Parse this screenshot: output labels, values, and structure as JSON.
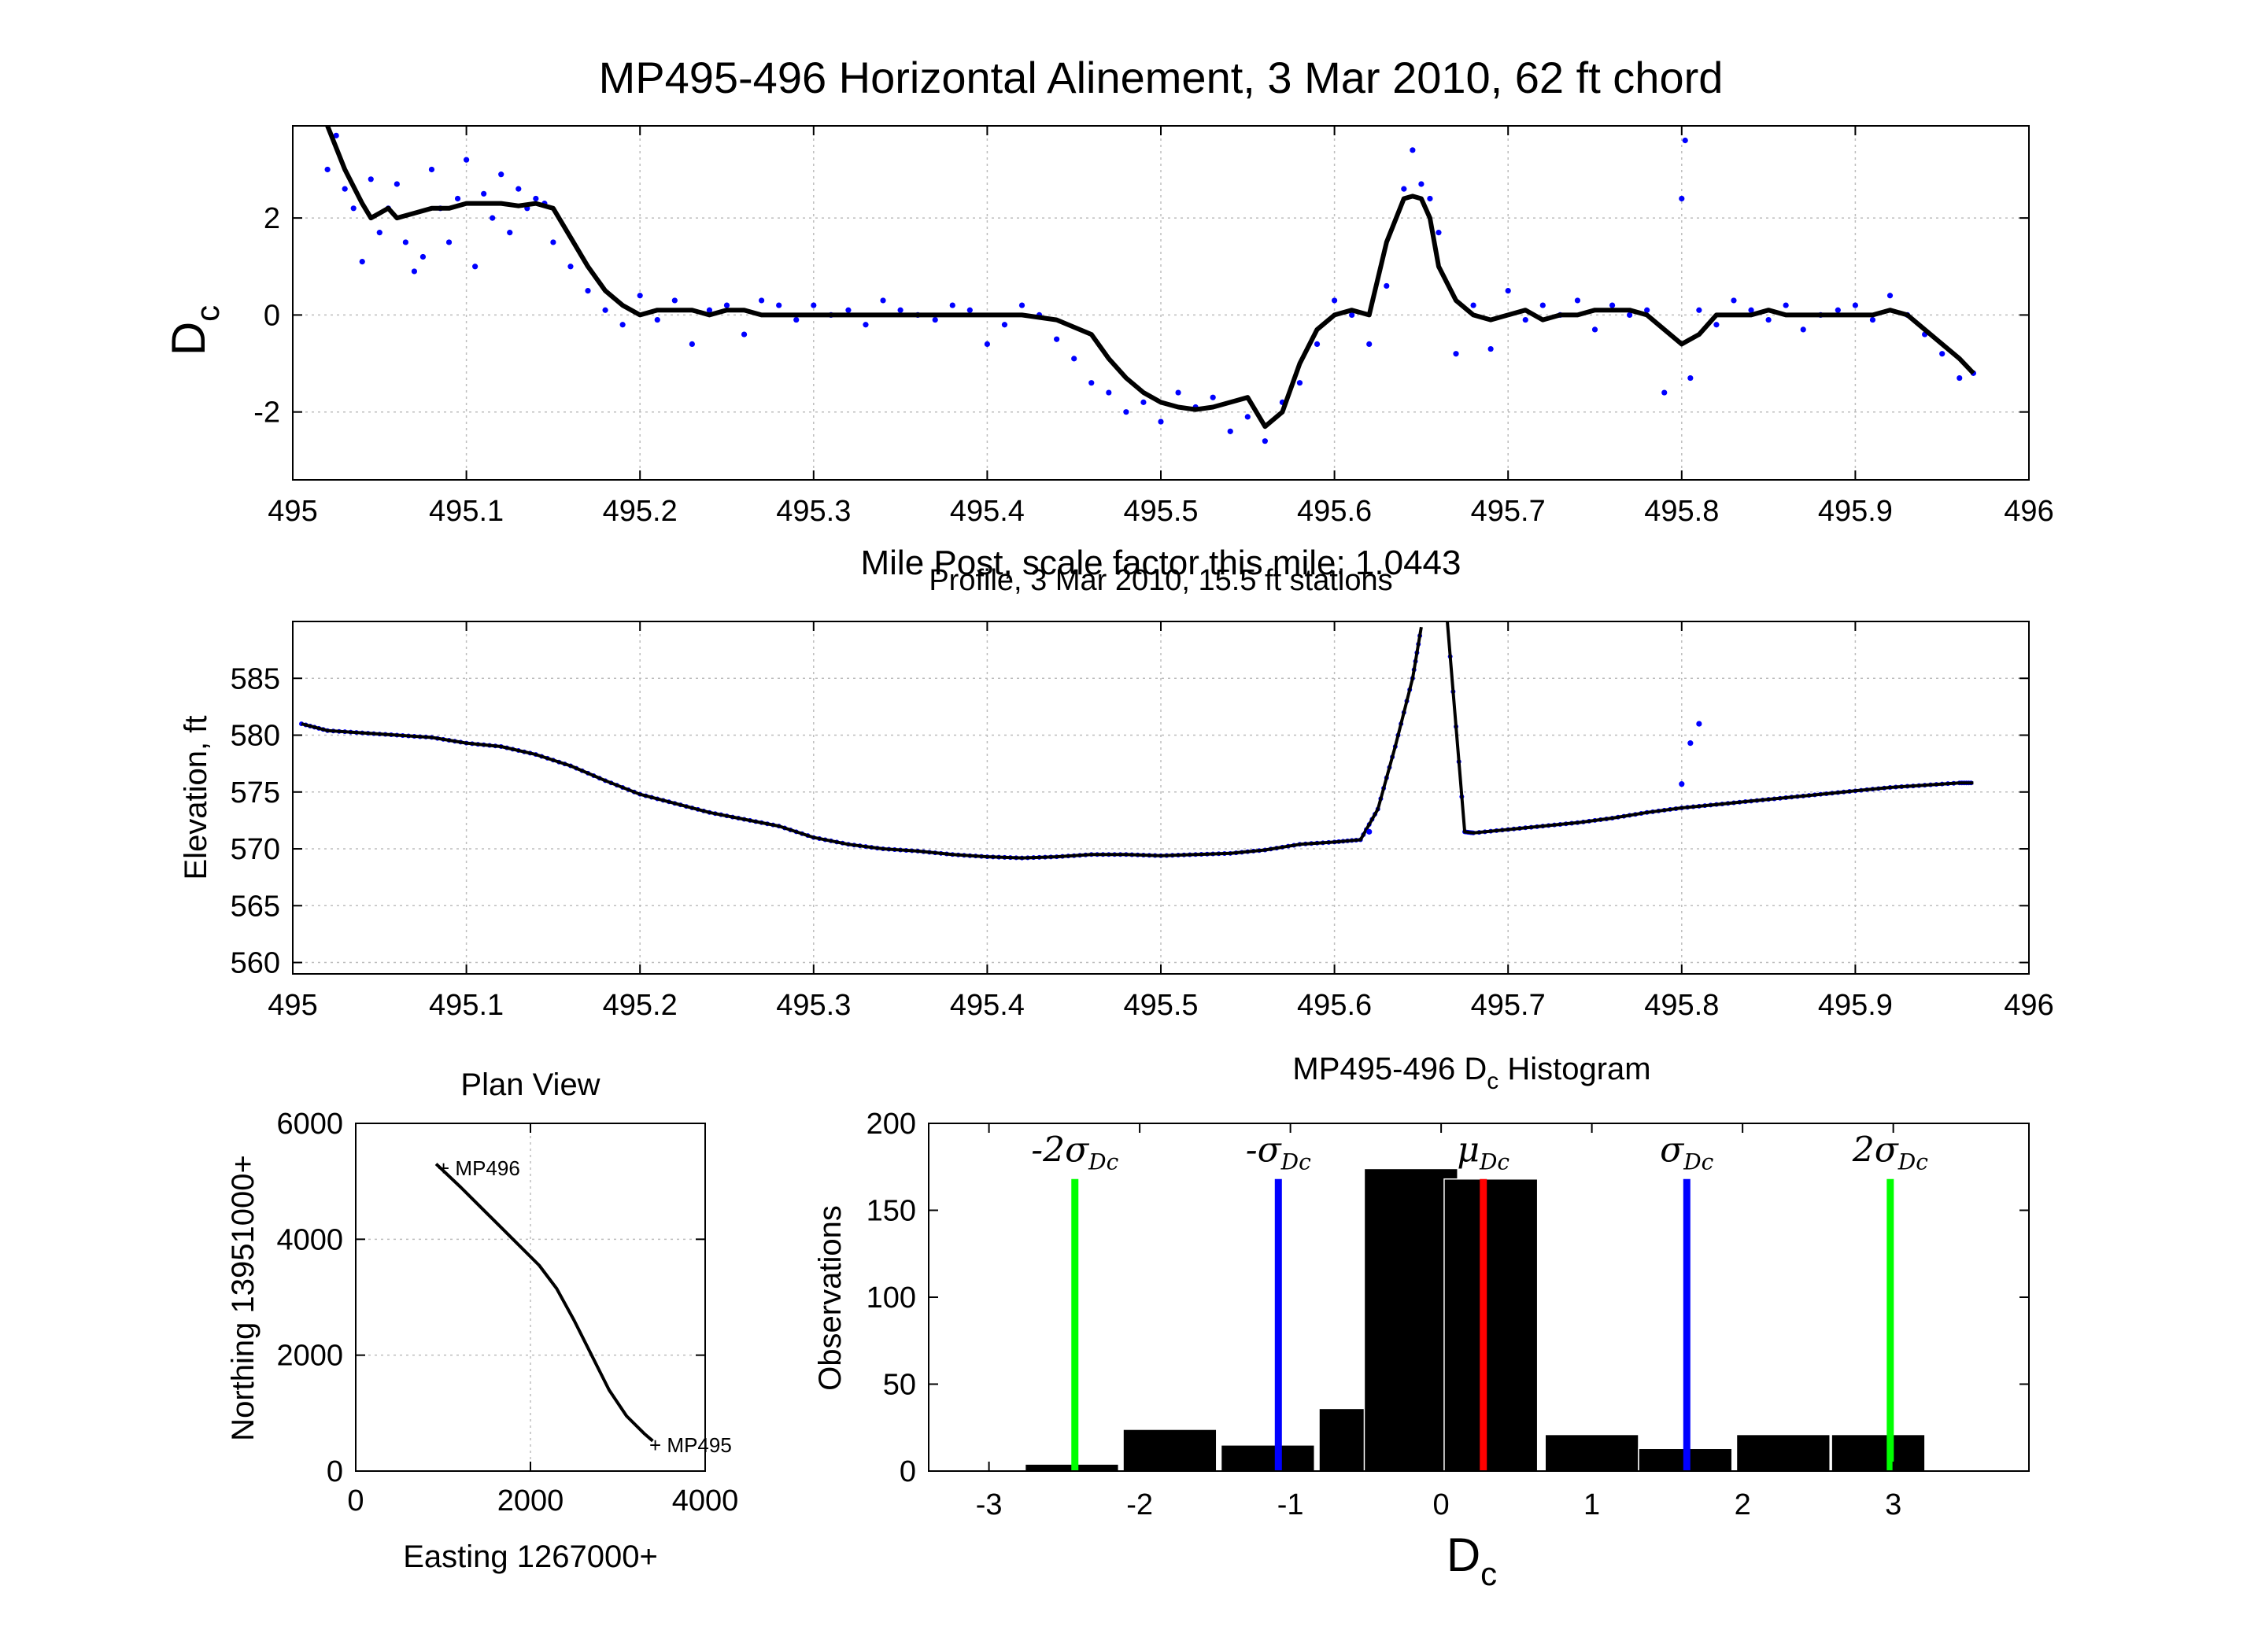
{
  "chart_data": [
    {
      "type": "scatter",
      "title": "MP495-496 Horizontal Alinement, 3 Mar 2010, 62 ft chord",
      "xlabel": "Mile Post, scale factor this mile: 1.0443",
      "ylabel": "D",
      "ylabel_sub": "c",
      "xlim": [
        495,
        496
      ],
      "ylim": [
        -3.4,
        3.9
      ],
      "xticks": [
        "495",
        "495.1",
        "495.2",
        "495.3",
        "495.4",
        "495.5",
        "495.6",
        "495.7",
        "495.8",
        "495.9",
        "496"
      ],
      "yticks": [
        "-2",
        "0",
        "2"
      ],
      "grid": true,
      "series": [
        {
          "kind": "points",
          "color": "#0000ff",
          "x": [
            495.02,
            495.025,
            495.03,
            495.035,
            495.04,
            495.045,
            495.05,
            495.055,
            495.06,
            495.065,
            495.07,
            495.075,
            495.08,
            495.085,
            495.09,
            495.095,
            495.1,
            495.105,
            495.11,
            495.115,
            495.12,
            495.125,
            495.13,
            495.135,
            495.14,
            495.145,
            495.15,
            495.16,
            495.17,
            495.18,
            495.19,
            495.2,
            495.21,
            495.22,
            495.23,
            495.24,
            495.25,
            495.26,
            495.27,
            495.28,
            495.29,
            495.3,
            495.31,
            495.32,
            495.33,
            495.34,
            495.35,
            495.36,
            495.37,
            495.38,
            495.39,
            495.4,
            495.41,
            495.42,
            495.43,
            495.44,
            495.45,
            495.46,
            495.47,
            495.48,
            495.49,
            495.5,
            495.51,
            495.52,
            495.53,
            495.54,
            495.55,
            495.56,
            495.57,
            495.58,
            495.59,
            495.6,
            495.61,
            495.62,
            495.63,
            495.64,
            495.645,
            495.65,
            495.655,
            495.66,
            495.67,
            495.68,
            495.69,
            495.7,
            495.71,
            495.72,
            495.73,
            495.74,
            495.75,
            495.76,
            495.77,
            495.78,
            495.79,
            495.8,
            495.802,
            495.805,
            495.81,
            495.82,
            495.83,
            495.84,
            495.85,
            495.86,
            495.87,
            495.88,
            495.89,
            495.9,
            495.91,
            495.92,
            495.93,
            495.94,
            495.95,
            495.96,
            495.968
          ],
          "y": [
            3.0,
            3.7,
            2.6,
            2.2,
            1.1,
            2.8,
            1.7,
            2.2,
            2.7,
            1.5,
            0.9,
            1.2,
            3.0,
            2.2,
            1.5,
            2.4,
            3.2,
            1.0,
            2.5,
            2.0,
            2.9,
            1.7,
            2.6,
            2.2,
            2.4,
            2.3,
            1.5,
            1.0,
            0.5,
            0.1,
            -0.2,
            0.4,
            -0.1,
            0.3,
            -0.6,
            0.1,
            0.2,
            -0.4,
            0.3,
            0.2,
            -0.1,
            0.2,
            0.0,
            0.1,
            -0.2,
            0.3,
            0.1,
            0.0,
            -0.1,
            0.2,
            0.1,
            -0.6,
            -0.2,
            0.2,
            0.0,
            -0.5,
            -0.9,
            -1.4,
            -1.6,
            -2.0,
            -1.8,
            -2.2,
            -1.6,
            -1.9,
            -1.7,
            -2.4,
            -2.1,
            -2.6,
            -1.8,
            -1.4,
            -0.6,
            0.3,
            0.0,
            -0.6,
            0.6,
            2.6,
            3.4,
            2.7,
            2.4,
            1.7,
            -0.8,
            0.2,
            -0.7,
            0.5,
            -0.1,
            0.2,
            0.0,
            0.3,
            -0.3,
            0.2,
            0.0,
            0.1,
            -1.6,
            2.4,
            3.6,
            -1.3,
            0.1,
            -0.2,
            0.3,
            0.1,
            -0.1,
            0.2,
            -0.3,
            0.0,
            0.1,
            0.2,
            -0.1,
            0.4,
            0.0,
            -0.4,
            -0.8,
            -1.3,
            -1.2
          ]
        },
        {
          "kind": "line",
          "color": "#000000",
          "x": [
            495.02,
            495.03,
            495.04,
            495.045,
            495.05,
            495.055,
            495.06,
            495.07,
            495.08,
            495.09,
            495.1,
            495.11,
            495.12,
            495.13,
            495.14,
            495.15,
            495.16,
            495.17,
            495.18,
            495.19,
            495.2,
            495.21,
            495.22,
            495.23,
            495.24,
            495.25,
            495.26,
            495.27,
            495.28,
            495.29,
            495.3,
            495.32,
            495.34,
            495.36,
            495.38,
            495.4,
            495.42,
            495.44,
            495.46,
            495.47,
            495.48,
            495.49,
            495.5,
            495.51,
            495.52,
            495.53,
            495.54,
            495.55,
            495.56,
            495.57,
            495.58,
            495.59,
            495.6,
            495.61,
            495.62,
            495.63,
            495.64,
            495.645,
            495.65,
            495.655,
            495.66,
            495.67,
            495.68,
            495.69,
            495.7,
            495.71,
            495.72,
            495.73,
            495.74,
            495.75,
            495.76,
            495.77,
            495.78,
            495.79,
            495.8,
            495.81,
            495.82,
            495.83,
            495.84,
            495.85,
            495.86,
            495.87,
            495.88,
            495.89,
            495.9,
            495.91,
            495.92,
            495.93,
            495.94,
            495.95,
            495.96,
            495.968
          ],
          "y": [
            4.0,
            3.0,
            2.3,
            2.0,
            2.1,
            2.2,
            2.0,
            2.1,
            2.2,
            2.2,
            2.3,
            2.3,
            2.3,
            2.25,
            2.3,
            2.2,
            1.6,
            1.0,
            0.5,
            0.2,
            0.0,
            0.1,
            0.1,
            0.1,
            0.0,
            0.1,
            0.1,
            0.0,
            0.0,
            0.0,
            0.0,
            0.0,
            0.0,
            0.0,
            0.0,
            0.0,
            0.0,
            -0.1,
            -0.4,
            -0.9,
            -1.3,
            -1.6,
            -1.8,
            -1.9,
            -1.95,
            -1.9,
            -1.8,
            -1.7,
            -2.3,
            -2.0,
            -1.0,
            -0.3,
            0.0,
            0.1,
            0.0,
            1.5,
            2.4,
            2.45,
            2.4,
            2.0,
            1.0,
            0.3,
            0.0,
            -0.1,
            0.0,
            0.1,
            -0.1,
            0.0,
            0.0,
            0.1,
            0.1,
            0.1,
            0.0,
            -0.3,
            -0.6,
            -0.4,
            0.0,
            0.0,
            0.0,
            0.1,
            0.0,
            0.0,
            0.0,
            0.0,
            0.0,
            0.0,
            0.1,
            0.0,
            -0.3,
            -0.6,
            -0.9,
            -1.2
          ]
        }
      ]
    },
    {
      "type": "line",
      "title": "Profile, 3 Mar 2010, 15.5 ft stations",
      "xlabel": "",
      "ylabel": "Elevation, ft",
      "xlim": [
        495,
        496
      ],
      "ylim": [
        559,
        590
      ],
      "xticks": [
        "495",
        "495.1",
        "495.2",
        "495.3",
        "495.4",
        "495.5",
        "495.6",
        "495.7",
        "495.8",
        "495.9",
        "496"
      ],
      "yticks": [
        "560",
        "565",
        "570",
        "575",
        "580",
        "585"
      ],
      "grid": true,
      "series": [
        {
          "kind": "line",
          "color": "#000000",
          "x": [
            495.005,
            495.02,
            495.04,
            495.06,
            495.08,
            495.1,
            495.12,
            495.14,
            495.16,
            495.18,
            495.2,
            495.22,
            495.24,
            495.26,
            495.28,
            495.3,
            495.32,
            495.34,
            495.36,
            495.38,
            495.4,
            495.42,
            495.44,
            495.46,
            495.48,
            495.5,
            495.52,
            495.54,
            495.56,
            495.58,
            495.6,
            495.615,
            495.625,
            495.635,
            495.645,
            495.65
          ],
          "y": [
            581,
            580.4,
            580.2,
            580.0,
            579.8,
            579.3,
            579.0,
            578.3,
            577.3,
            576.0,
            574.8,
            574.0,
            573.2,
            572.6,
            572.0,
            571.0,
            570.4,
            570.0,
            569.8,
            569.5,
            569.3,
            569.2,
            569.3,
            569.5,
            569.5,
            569.4,
            569.5,
            569.6,
            569.9,
            570.4,
            570.6,
            570.8,
            573.5,
            579.0,
            585.0,
            589.5
          ]
        },
        {
          "kind": "line",
          "color": "#000000",
          "x": [
            495.665,
            495.675,
            495.68,
            495.7,
            495.72,
            495.74,
            495.76,
            495.78,
            495.8,
            495.82,
            495.84,
            495.86,
            495.88,
            495.9,
            495.92,
            495.94,
            495.96,
            495.968
          ],
          "y": [
            590,
            571.5,
            571.4,
            571.7,
            572.0,
            572.3,
            572.7,
            573.2,
            573.6,
            573.9,
            574.2,
            574.5,
            574.8,
            575.1,
            575.4,
            575.6,
            575.8,
            575.8
          ]
        },
        {
          "kind": "points",
          "color": "#0000ff",
          "x": [
            495.62,
            495.8,
            495.805,
            495.81
          ],
          "y": [
            571.5,
            575.7,
            579.3,
            581.0
          ]
        }
      ]
    },
    {
      "type": "line",
      "title": "Plan View",
      "xlabel": "Easting 1267000+",
      "ylabel": "Northing 13951000+",
      "xlim": [
        0,
        4000
      ],
      "ylim": [
        0,
        6000
      ],
      "xticks": [
        "0",
        "2000",
        "4000"
      ],
      "yticks": [
        "0",
        "2000",
        "4000",
        "6000"
      ],
      "grid": true,
      "annotations": [
        "+ MP496",
        "+ MP495"
      ],
      "series": [
        {
          "kind": "line",
          "color": "#000000",
          "x": [
            920,
            1200,
            1500,
            1800,
            2100,
            2300,
            2500,
            2700,
            2900,
            3100,
            3300,
            3400
          ],
          "y": [
            5300,
            4900,
            4450,
            4000,
            3550,
            3150,
            2600,
            2000,
            1400,
            950,
            650,
            520
          ]
        }
      ]
    },
    {
      "type": "bar",
      "title": "MP495-496 D",
      "title_sub": "c",
      "title_suffix": " Histogram",
      "xlabel": "D",
      "xlabel_sub": "c",
      "ylabel": "Observations",
      "xlim": [
        -3.4,
        3.9
      ],
      "ylim": [
        0,
        200
      ],
      "xticks": [
        "-3",
        "-2",
        "-1",
        "0",
        "1",
        "2",
        "3"
      ],
      "yticks": [
        "0",
        "50",
        "100",
        "150",
        "200"
      ],
      "grid": false,
      "bin_centers": [
        -2.45,
        -1.8,
        -1.15,
        -0.5,
        -0.2,
        0.33,
        1.0,
        1.62,
        2.27,
        2.9
      ],
      "bin_width": 0.62,
      "values": [
        4,
        24,
        15,
        36,
        174,
        168,
        21,
        13,
        21,
        21
      ],
      "reference_lines": [
        {
          "label": "-2σ",
          "sub": "Dc",
          "x": -2.43,
          "color": "#00ff00"
        },
        {
          "label": "-σ",
          "sub": "Dc",
          "x": -1.08,
          "color": "#0000ff"
        },
        {
          "label": "μ",
          "sub": "Dc",
          "x": 0.28,
          "color": "#ff0000"
        },
        {
          "label": "σ",
          "sub": "Dc",
          "x": 1.63,
          "color": "#0000ff"
        },
        {
          "label": "2σ",
          "sub": "Dc",
          "x": 2.98,
          "color": "#00ff00"
        }
      ]
    }
  ]
}
